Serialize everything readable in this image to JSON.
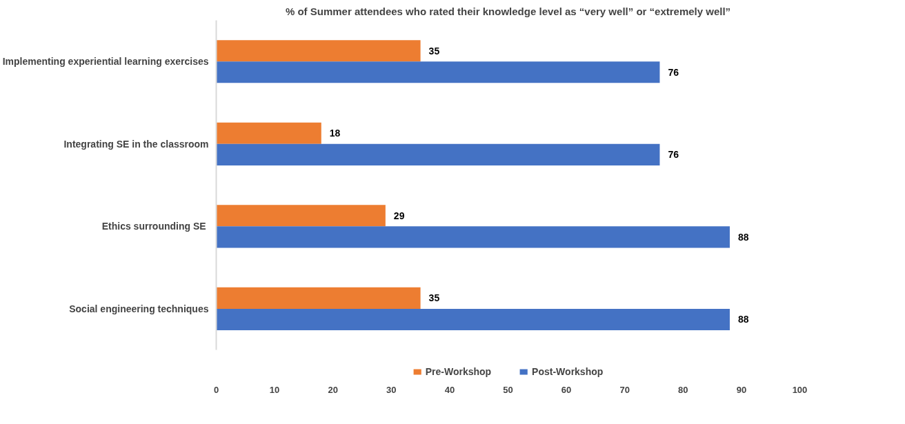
{
  "chart_data": {
    "type": "bar",
    "orientation": "horizontal",
    "title": "% of Summer attendees who rated their knowledge level as “very well” or “extremely well”",
    "categories": [
      "Implementing experiential learning exercises",
      "Integrating SE in the classroom",
      "Ethics surrounding SE ",
      "Social engineering techniques"
    ],
    "series": [
      {
        "name": "Pre-Workshop",
        "color": "#ed7d31",
        "values": [
          35,
          18,
          29,
          35
        ]
      },
      {
        "name": "Post-Workshop",
        "color": "#4472c4",
        "values": [
          76,
          76,
          88,
          88
        ]
      }
    ],
    "xlim": [
      0,
      100
    ],
    "xticks": [
      0,
      10,
      20,
      30,
      40,
      50,
      60,
      70,
      80,
      90,
      100
    ],
    "grid": false,
    "legend": "bottom",
    "data_labels": true
  }
}
